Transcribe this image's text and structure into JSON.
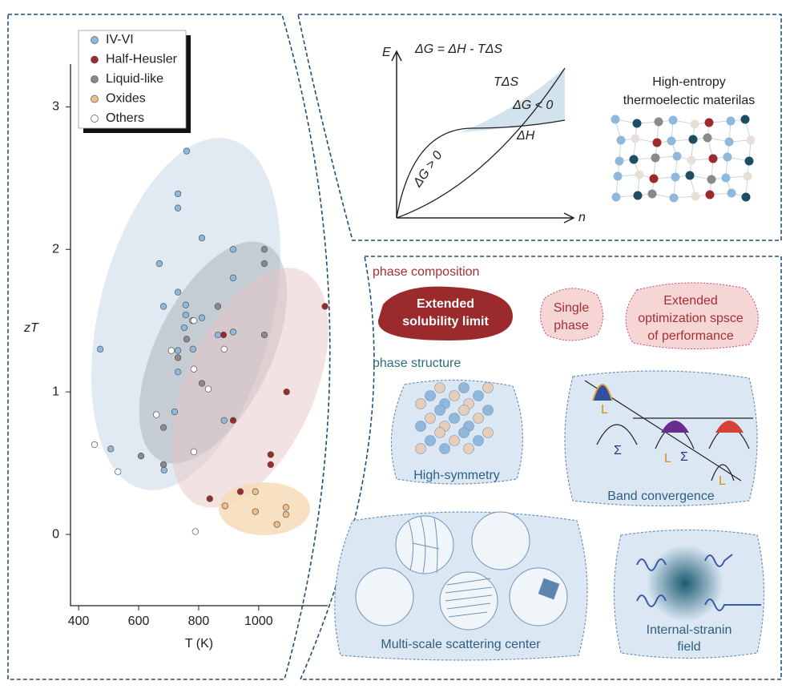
{
  "chart_data": {
    "type": "scatter",
    "xlabel": "T (K)",
    "ylabel": "zT",
    "xlim": [
      373,
      1230
    ],
    "ylim": [
      -0.5,
      3.3
    ],
    "xticks": [
      400,
      600,
      800,
      1000
    ],
    "yticks": [
      0,
      1,
      2,
      3
    ],
    "legend": "upper left",
    "series": [
      {
        "name": "IV-VI",
        "color": "#8fb8dc",
        "x": [
          472,
          507,
          760,
          731,
          731,
          811,
          669,
          915,
          915,
          683,
          731,
          757,
          757,
          779,
          811,
          752,
          731,
          781,
          731,
          864,
          915,
          885,
          720,
          685
        ],
        "values": [
          1.3,
          0.6,
          2.69,
          2.39,
          2.29,
          2.08,
          1.9,
          2.0,
          1.8,
          1.6,
          1.7,
          1.61,
          1.54,
          1.5,
          1.52,
          1.45,
          1.29,
          1.3,
          1.14,
          1.4,
          1.42,
          0.8,
          0.86,
          0.45
        ]
      },
      {
        "name": "Half-Heusler",
        "color": "#9b2a2d",
        "x": [
          1221,
          883,
          1093,
          915,
          1040,
          1040,
          837,
          939
        ],
        "values": [
          1.6,
          1.4,
          1.0,
          0.8,
          0.56,
          0.49,
          0.25,
          0.3
        ]
      },
      {
        "name": "Liquid-like",
        "color": "#8a8a8a",
        "x": [
          1019,
          1019,
          864,
          760,
          1019,
          731,
          811,
          683,
          608,
          683
        ],
        "values": [
          2.0,
          1.9,
          1.6,
          1.37,
          1.4,
          1.24,
          1.06,
          0.75,
          0.55,
          0.49
        ]
      },
      {
        "name": "Oxides",
        "color": "#f2be86",
        "x": [
          888,
          989,
          989,
          1091,
          1091,
          1061
        ],
        "values": [
          0.2,
          0.3,
          0.16,
          0.19,
          0.14,
          0.07
        ]
      },
      {
        "name": "Others",
        "color": "#ffffff",
        "x": [
          453,
          531,
          709,
          659,
          784,
          832,
          885,
          784,
          789,
          784
        ],
        "values": [
          0.63,
          0.44,
          1.29,
          0.84,
          1.16,
          1.02,
          1.3,
          0.58,
          0.02,
          1.5
        ]
      }
    ]
  },
  "thermo_panel": {
    "e_axis": "E",
    "n_axis": "n",
    "equation": "ΔG = ΔH - TΔS",
    "tds": "TΔS",
    "dg_negative": "ΔG < 0",
    "dh": "ΔH",
    "dg_positive": "ΔG > 0",
    "title": [
      "High-entropy",
      "thermoelectic materilas"
    ]
  },
  "phase_panel": {
    "composition_heading": "phase composition",
    "composition": [
      [
        "Extended",
        "solubility limit"
      ],
      [
        "Single",
        "phase"
      ],
      [
        "Extended",
        "optimization spsce",
        "of performance"
      ]
    ],
    "structure_heading": "phase structure",
    "structures": [
      "High-symmetry",
      "Band convergence",
      "Multi-scale scattering center",
      [
        "Internal-stranin",
        "field"
      ]
    ],
    "band_labels": [
      "L",
      "Σ",
      "L",
      "Σ",
      "L"
    ]
  }
}
